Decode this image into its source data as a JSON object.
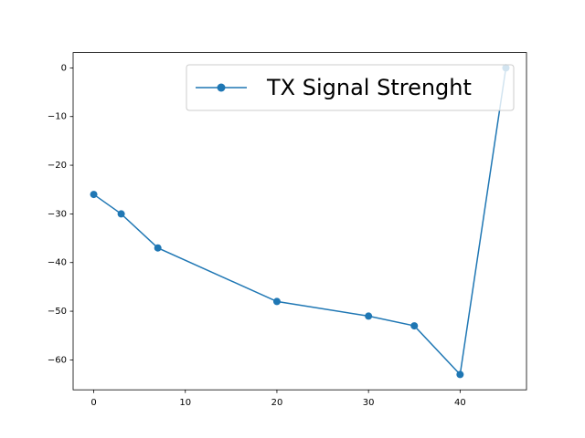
{
  "chart_data": {
    "type": "line",
    "x": [
      0,
      3,
      7,
      20,
      30,
      35,
      40,
      45
    ],
    "series": [
      {
        "name": "TX Signal Strenght",
        "color": "#1f77b4",
        "values": [
          -26,
          -30,
          -37,
          -48,
          -51,
          -53,
          -63,
          0
        ]
      }
    ],
    "xlim": [
      -2.25,
      47.25
    ],
    "xticks": [
      0,
      10,
      20,
      30,
      40
    ],
    "ylim": [
      -66.15,
      3.15
    ],
    "yticks": [
      {
        "value": 0,
        "label": "0"
      },
      {
        "value": -10,
        "label": "−10"
      },
      {
        "value": -20,
        "label": "−20"
      },
      {
        "value": -30,
        "label": "−30"
      },
      {
        "value": -40,
        "label": "−40"
      },
      {
        "value": -50,
        "label": "−50"
      },
      {
        "value": -60,
        "label": "−60"
      }
    ],
    "grid": false,
    "legend": "upper right"
  }
}
